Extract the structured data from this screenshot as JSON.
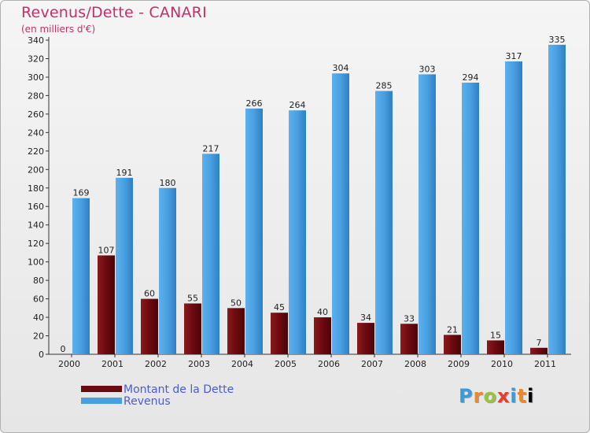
{
  "title": "Revenus/Dette - CANARI",
  "subtitle": "(en milliers d'€)",
  "logo_text": "Proxiti",
  "colors": {
    "dette": "#6b0a10",
    "revenus": "#4a9fe0",
    "title": "#c0306a",
    "legend_text": "#4b5bd6"
  },
  "legend": [
    {
      "label": "Montant de la Dette",
      "color": "#6b0a10"
    },
    {
      "label": "Revenus",
      "color": "#4a9fe0"
    }
  ],
  "chart_data": {
    "type": "bar",
    "categories": [
      "2000",
      "2001",
      "2002",
      "2003",
      "2004",
      "2005",
      "2006",
      "2007",
      "2008",
      "2009",
      "2010",
      "2011"
    ],
    "series": [
      {
        "name": "Montant de la Dette",
        "values": [
          0,
          107,
          60,
          55,
          50,
          45,
          40,
          34,
          33,
          21,
          15,
          7
        ]
      },
      {
        "name": "Revenus",
        "values": [
          169,
          191,
          180,
          217,
          266,
          264,
          304,
          285,
          303,
          294,
          317,
          335
        ]
      }
    ],
    "yticks": [
      0,
      20,
      40,
      60,
      80,
      100,
      120,
      140,
      160,
      180,
      200,
      220,
      240,
      260,
      280,
      300,
      320,
      340
    ],
    "ylim": [
      0,
      340
    ],
    "grid": false,
    "legend_position": "bottom-left"
  }
}
